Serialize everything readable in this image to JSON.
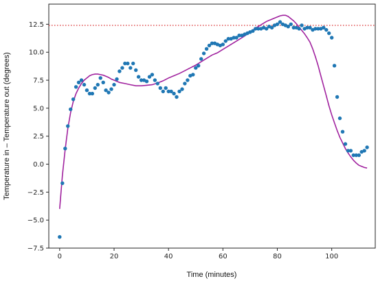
{
  "chart_data": {
    "type": "scatter",
    "title": "",
    "xlabel": "Time (minutes)",
    "ylabel": "Temperature in – Temperature out (degrees)",
    "xlim": [
      -4,
      116
    ],
    "ylim": [
      -7.5,
      14.3
    ],
    "xticks": [
      0,
      20,
      40,
      60,
      80,
      100
    ],
    "yticks": [
      -7.5,
      -5.0,
      -2.5,
      0.0,
      2.5,
      5.0,
      7.5,
      10.0,
      12.5
    ],
    "ytick_labels": [
      "−7.5",
      "−5.0",
      "−2.5",
      "0.0",
      "2.5",
      "5.0",
      "7.5",
      "10.0",
      "12.5"
    ],
    "grid": false,
    "legend": "none",
    "colors": {
      "points": "#1f77b4",
      "curve": "#a0219e",
      "reference": "#d62728"
    },
    "reference_line": {
      "y": 12.4,
      "style": "dotted"
    },
    "series": [
      {
        "kind": "scatter",
        "x": [
          0,
          1,
          2,
          3,
          4,
          5,
          6,
          7,
          8,
          9,
          10,
          11,
          12,
          13,
          14,
          15,
          16,
          17,
          18,
          19,
          20,
          21,
          22,
          23,
          24,
          25,
          26,
          27,
          28,
          29,
          30,
          31,
          32,
          33,
          34,
          35,
          36,
          37,
          38,
          39,
          40,
          41,
          42,
          43,
          44,
          45,
          46,
          47,
          48,
          49,
          50,
          51,
          52,
          53,
          54,
          55,
          56,
          57,
          58,
          59,
          60,
          61,
          62,
          63,
          64,
          65,
          66,
          67,
          68,
          69,
          70,
          71,
          72,
          73,
          74,
          75,
          76,
          77,
          78,
          79,
          80,
          81,
          82,
          83,
          84,
          85,
          86,
          87,
          88,
          89,
          90,
          91,
          92,
          93,
          94,
          95,
          96,
          97,
          98,
          99,
          100,
          101,
          102,
          103,
          104,
          105,
          106,
          107,
          108,
          109,
          110,
          111,
          112,
          113
        ],
        "y": [
          -6.5,
          -1.7,
          1.4,
          3.4,
          4.9,
          5.8,
          6.9,
          7.3,
          7.5,
          7.1,
          6.6,
          6.3,
          6.3,
          6.8,
          7.1,
          7.7,
          7.3,
          6.6,
          6.4,
          6.7,
          7.1,
          7.6,
          8.3,
          8.6,
          9.0,
          9.0,
          8.6,
          9.0,
          8.4,
          7.8,
          7.5,
          7.5,
          7.4,
          7.8,
          8.0,
          7.5,
          7.2,
          6.8,
          6.5,
          6.8,
          6.5,
          6.5,
          6.3,
          6.0,
          6.5,
          6.7,
          7.2,
          7.5,
          7.9,
          8.0,
          8.6,
          8.8,
          9.4,
          9.9,
          10.3,
          10.6,
          10.8,
          10.8,
          10.7,
          10.6,
          10.7,
          11.0,
          11.2,
          11.2,
          11.3,
          11.3,
          11.5,
          11.5,
          11.6,
          11.7,
          11.8,
          11.9,
          12.1,
          12.1,
          12.1,
          12.2,
          12.1,
          12.3,
          12.2,
          12.4,
          12.5,
          12.7,
          12.5,
          12.4,
          12.3,
          12.5,
          12.2,
          12.2,
          12.1,
          12.4,
          12.1,
          12.2,
          12.2,
          12.0,
          12.1,
          12.1,
          12.1,
          12.2,
          12.0,
          11.7,
          11.3,
          8.8,
          6.0,
          4.1,
          2.9,
          1.8,
          1.2,
          1.2,
          0.8,
          0.8,
          0.8,
          1.1,
          1.2,
          1.5
        ]
      },
      {
        "kind": "line",
        "x": [
          0,
          1,
          2,
          3,
          4,
          5,
          6,
          7,
          8,
          9,
          10,
          11,
          12,
          13,
          14,
          15,
          16,
          17,
          18,
          19,
          20,
          22,
          24,
          26,
          28,
          30,
          32,
          34,
          36,
          38,
          40,
          42,
          44,
          46,
          48,
          50,
          52,
          54,
          56,
          58,
          60,
          62,
          64,
          66,
          68,
          70,
          72,
          74,
          76,
          78,
          80,
          81,
          82,
          83,
          84,
          85,
          86,
          87,
          88,
          89,
          90,
          91,
          92,
          93,
          94,
          95,
          96,
          97,
          98,
          99,
          100,
          101,
          102,
          103,
          104,
          105,
          106,
          107,
          108,
          109,
          110,
          111,
          112,
          113
        ],
        "y": [
          -4.0,
          -1.0,
          1.3,
          3.2,
          4.6,
          5.6,
          6.3,
          6.8,
          7.2,
          7.5,
          7.7,
          7.9,
          8.0,
          8.05,
          8.05,
          8.0,
          7.95,
          7.85,
          7.75,
          7.6,
          7.5,
          7.3,
          7.2,
          7.1,
          7.0,
          7.0,
          7.05,
          7.1,
          7.25,
          7.45,
          7.7,
          7.9,
          8.1,
          8.35,
          8.6,
          8.85,
          9.15,
          9.45,
          9.75,
          9.95,
          10.25,
          10.55,
          10.85,
          11.15,
          11.45,
          11.8,
          12.15,
          12.45,
          12.75,
          12.95,
          13.15,
          13.25,
          13.3,
          13.3,
          13.2,
          13.0,
          12.8,
          12.55,
          12.25,
          11.95,
          11.65,
          11.3,
          10.9,
          10.3,
          9.6,
          8.8,
          7.9,
          7.0,
          6.1,
          5.2,
          4.4,
          3.7,
          3.0,
          2.4,
          1.9,
          1.4,
          1.0,
          0.65,
          0.35,
          0.1,
          -0.1,
          -0.2,
          -0.3,
          -0.35
        ]
      }
    ]
  }
}
